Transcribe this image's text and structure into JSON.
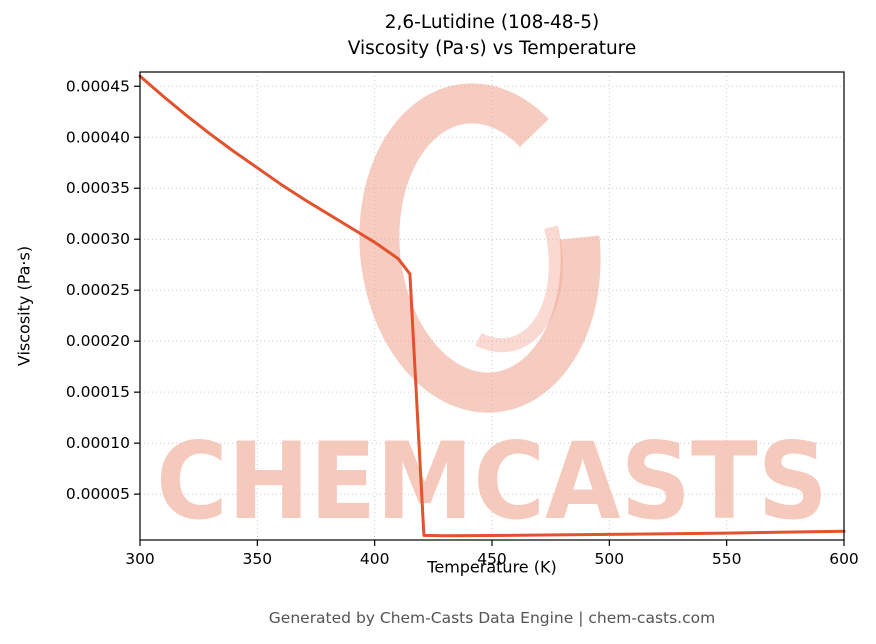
{
  "footer": {
    "text": "Generated by Chem-Casts Data Engine | chem-casts.com"
  },
  "watermark": {
    "text": "CHEMCASTS",
    "text_color": "#f4c0b1",
    "logo_color": "#efa18c"
  },
  "chart_data": {
    "type": "line",
    "title": "2,6-Lutidine (108-48-5) — Viscosity (Pa·s) vs Temperature",
    "title_line1": "2,6-Lutidine (108-48-5)",
    "title_line2": "Viscosity (Pa·s) vs Temperature",
    "xlabel": "Temperature (K)",
    "ylabel": "Viscosity (Pa·s)",
    "xlim": [
      300,
      600
    ],
    "ylim": [
      5e-06,
      0.000464
    ],
    "xticks": [
      300,
      350,
      400,
      450,
      500,
      550,
      600
    ],
    "yticks": [
      5e-05,
      0.0001,
      0.00015,
      0.0002,
      0.00025,
      0.0003,
      0.00035,
      0.0004,
      0.00045
    ],
    "grid": true,
    "grid_style": "dotted",
    "line_color": "#e2522c",
    "series": [
      {
        "name": "viscosity",
        "x": [
          300,
          310,
          320,
          330,
          340,
          350,
          360,
          370,
          380,
          390,
          400,
          410,
          415,
          421,
          430,
          450,
          500,
          550,
          600
        ],
        "y": [
          0.00046,
          0.00044,
          0.000421,
          0.000403,
          0.000386,
          0.00037,
          0.000354,
          0.000339,
          0.000325,
          0.000311,
          0.000297,
          0.000281,
          0.000266,
          9.5e-06,
          9.2e-06,
          9.4e-06,
          1.05e-05,
          1.18e-05,
          1.35e-05
        ]
      }
    ]
  }
}
